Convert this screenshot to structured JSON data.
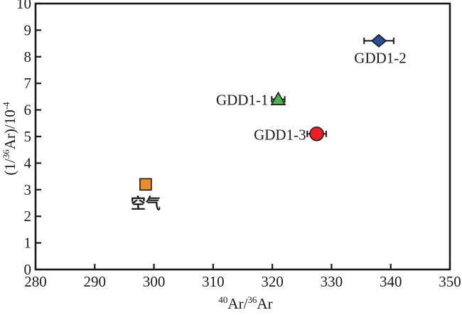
{
  "figure": {
    "background": "#ffffff",
    "frame_color": "#1a1a1a",
    "marker_edge_color": "#1a1a1a",
    "text_color": "#1a1a1a"
  },
  "chart_data": {
    "type": "scatter",
    "title": "",
    "xlabel_text": "40Ar/36Ar",
    "ylabel_text": "(1/36Ar)/10-4",
    "xlabel_parts": [
      {
        "text": "40",
        "sup": true
      },
      {
        "text": "Ar/"
      },
      {
        "text": "36",
        "sup": true
      },
      {
        "text": "Ar"
      }
    ],
    "ylabel_parts": [
      {
        "text": "(1/"
      },
      {
        "text": "36",
        "sup": true
      },
      {
        "text": "Ar)/10"
      },
      {
        "text": "-4",
        "sup": true
      }
    ],
    "xlim": [
      280,
      350
    ],
    "ylim": [
      0,
      10
    ],
    "xticks": [
      280,
      290,
      300,
      310,
      320,
      330,
      340,
      350
    ],
    "yticks": [
      0,
      1,
      2,
      3,
      4,
      5,
      6,
      7,
      8,
      9,
      10
    ],
    "grid": false,
    "legend_position": "none",
    "series": [
      {
        "name": "空气",
        "marker": "square",
        "color": "#ef8c25",
        "x": 298.6,
        "y": 3.2,
        "x_err": 0,
        "label_pos": "below",
        "label_anchor": "middle",
        "label_dx": 0,
        "label_dy": 34,
        "label_bold": true
      },
      {
        "name": "GDD1-1",
        "marker": "triangle",
        "color": "#48b749",
        "x": 321,
        "y": 6.4,
        "x_err": 1.1,
        "label_pos": "left",
        "label_anchor": "end",
        "label_dx": -14,
        "label_dy": 8,
        "label_bold": false
      },
      {
        "name": "GDD1-3",
        "marker": "circle",
        "color": "#ee1d23",
        "x": 327.5,
        "y": 5.1,
        "x_err": 1.6,
        "label_pos": "left",
        "label_anchor": "end",
        "label_dx": -15,
        "label_dy": 8,
        "label_bold": false
      },
      {
        "name": "GDD1-2",
        "marker": "diamond",
        "color": "#2d4d9c",
        "x": 338,
        "y": 8.6,
        "x_err": 2.5,
        "label_pos": "below",
        "label_anchor": "middle",
        "label_dx": 2,
        "label_dy": 31,
        "label_bold": false
      }
    ]
  }
}
